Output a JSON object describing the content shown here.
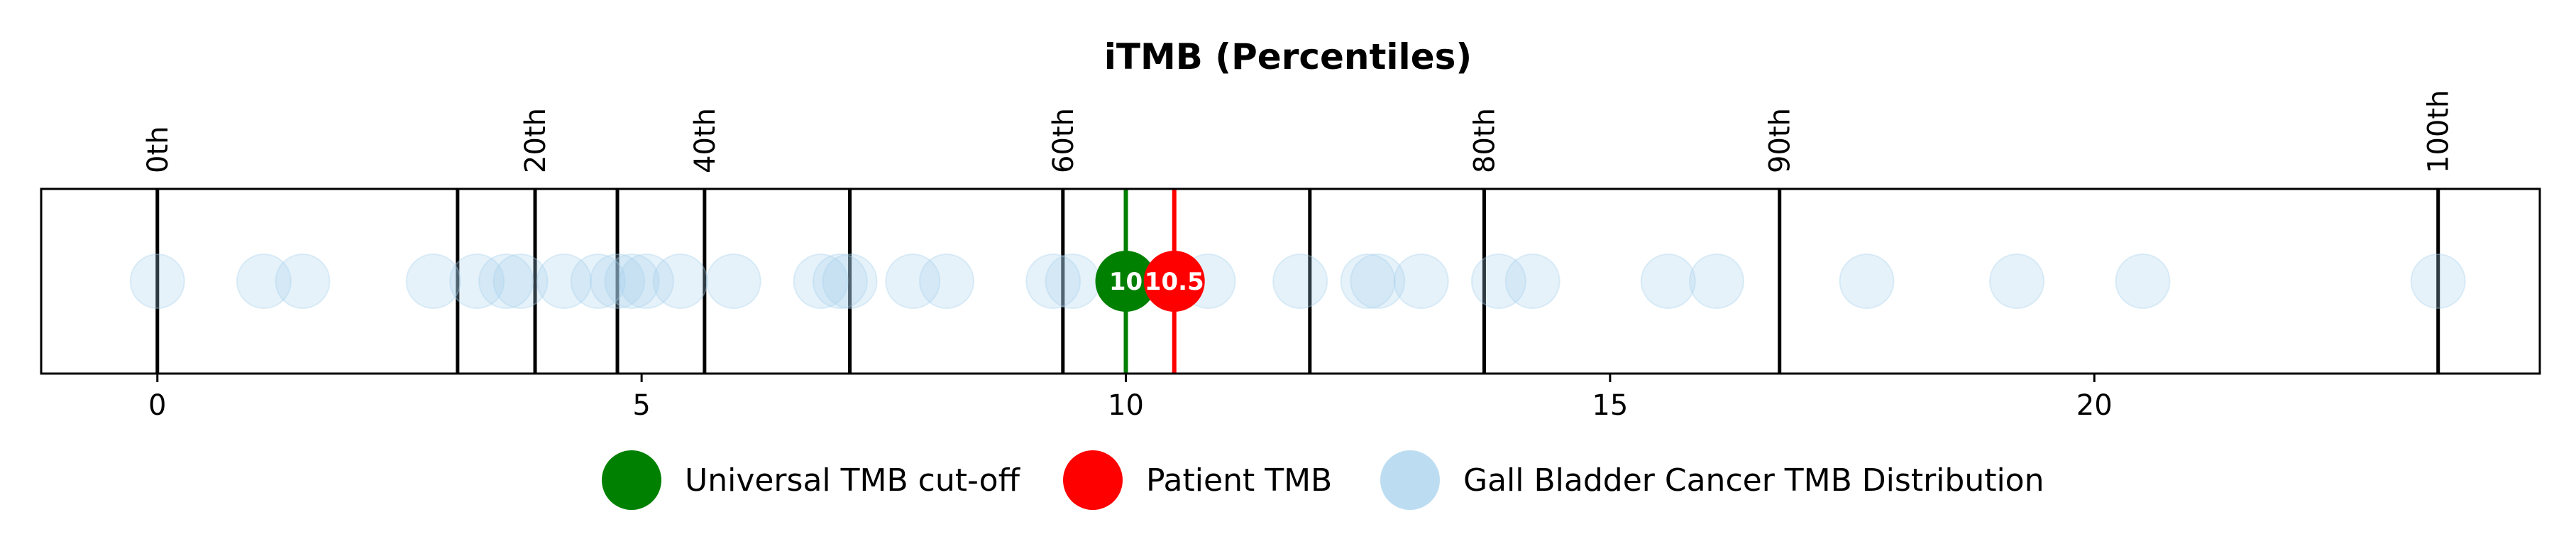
{
  "chart_data": {
    "type": "scatter",
    "title": "iTMB (Percentiles)",
    "xlim": [
      -1.2,
      24.6
    ],
    "xticks": [
      0,
      5,
      10,
      15,
      20
    ],
    "grid": false,
    "legend_position": "bottom-center",
    "percentile_lines": [
      {
        "label": "0th",
        "x": 0
      },
      {
        "label": "",
        "x": 3.1
      },
      {
        "label": "20th",
        "x": 3.9
      },
      {
        "label": "",
        "x": 4.75
      },
      {
        "label": "40th",
        "x": 5.65
      },
      {
        "label": "",
        "x": 7.15
      },
      {
        "label": "60th",
        "x": 9.35
      },
      {
        "label": "",
        "x": 11.9
      },
      {
        "label": "80th",
        "x": 13.7
      },
      {
        "label": "90th",
        "x": 16.75
      },
      {
        "label": "100th",
        "x": 23.55
      }
    ],
    "distribution": {
      "name": "Gall Bladder Cancer TMB Distribution",
      "color": "#a6d2ec",
      "values": [
        0,
        1.1,
        1.5,
        2.85,
        3.3,
        3.6,
        3.75,
        4.2,
        4.55,
        4.75,
        4.9,
        5.05,
        5.4,
        5.95,
        6.85,
        7.05,
        7.15,
        7.8,
        8.15,
        9.25,
        9.45,
        10.85,
        11.8,
        12.5,
        12.6,
        13.05,
        13.85,
        14.2,
        15.6,
        16.1,
        17.65,
        19.2,
        20.5,
        23.55
      ]
    },
    "cutoff": {
      "name": "Universal TMB cut-off",
      "value": 10,
      "label": "10",
      "color": "#008000"
    },
    "patient": {
      "name": "Patient TMB",
      "value": 10.5,
      "label": "10.5",
      "color": "#ff0000"
    }
  }
}
